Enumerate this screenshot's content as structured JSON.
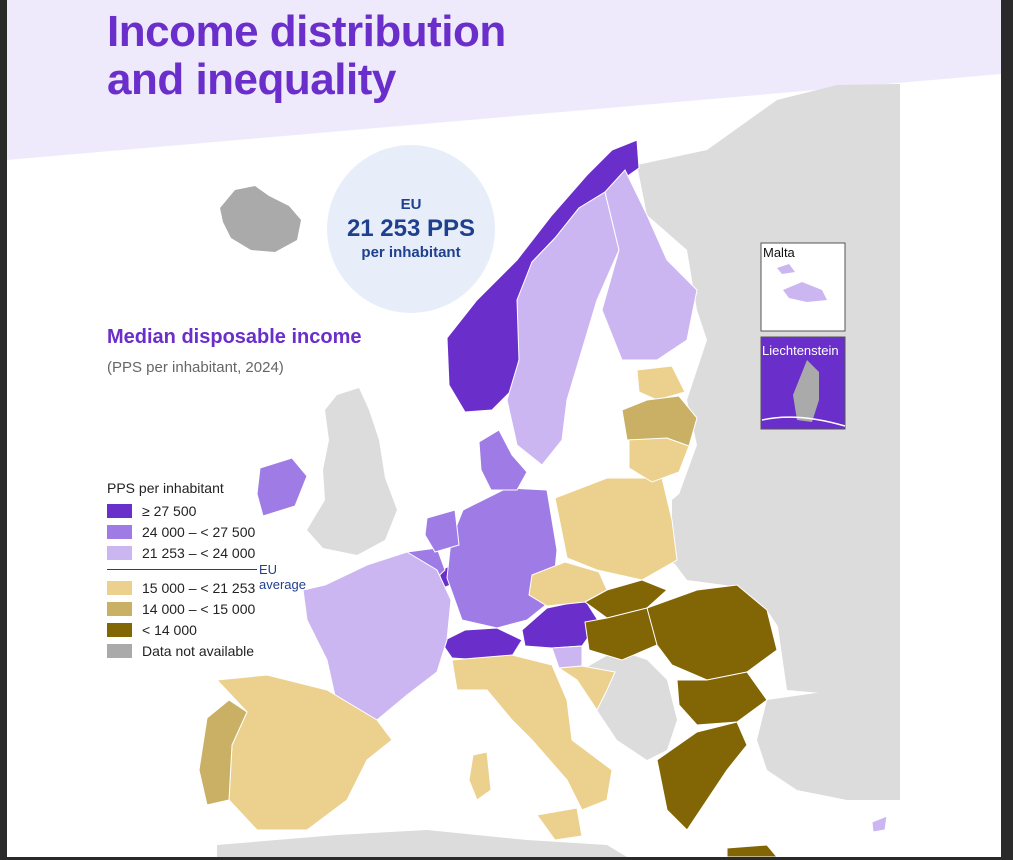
{
  "header": {
    "title_line1": "Income distribution",
    "title_line2": "and inequality"
  },
  "eu_average": {
    "line1": "EU",
    "line2": "21 253 PPS",
    "line3": "per inhabitant"
  },
  "map": {
    "title": "Median disposable income",
    "subtitle": "(PPS per inhabitant, 2024)",
    "legend": {
      "title": "PPS per inhabitant",
      "eu_separator_label": "EU average",
      "classes": [
        {
          "label": "≥ 27 500",
          "color": "#6a2ecb"
        },
        {
          "label": "24 000 – < 27 500",
          "color": "#9e7be5"
        },
        {
          "label": "21 253 – < 24 000",
          "color": "#cbb6f2"
        },
        {
          "label": "15 000 – < 21 253",
          "color": "#ecd08d"
        },
        {
          "label": "14 000 – < 15 000",
          "color": "#c9b064"
        },
        {
          "label": "< 14 000",
          "color": "#826504"
        },
        {
          "label": "Data not available",
          "color": "#aaaaaa"
        }
      ]
    },
    "insets": {
      "malta": "Malta",
      "liechtenstein": "Liechtenstein"
    },
    "colors": {
      "header_band": "#efeafb",
      "non_eu_land": "#dcdcdc",
      "sea": "#ffffff"
    }
  }
}
